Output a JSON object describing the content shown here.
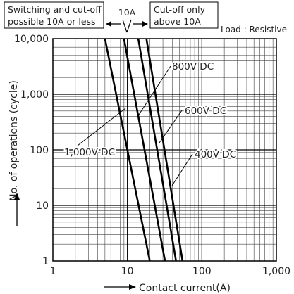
{
  "chart_data": {
    "type": "line",
    "title": "",
    "xlabel": "Contact current(A)",
    "ylabel": "No. of operations (cycle)",
    "x_scale": "log",
    "y_scale": "log",
    "xlim": [
      1,
      1000
    ],
    "ylim": [
      1,
      10000
    ],
    "x_ticks": [
      "1",
      "10",
      "100",
      "1,000"
    ],
    "y_ticks": [
      "1",
      "10",
      "100",
      "1,000",
      "10,000"
    ],
    "grid": true,
    "series": [
      {
        "name": "1,000V DC",
        "x": [
          5.0,
          20.0
        ],
        "y": [
          10000,
          1
        ]
      },
      {
        "name": "800V DC",
        "x": [
          9.0,
          32.0
        ],
        "y": [
          10000,
          1
        ]
      },
      {
        "name": "600V DC",
        "x": [
          14.0,
          45.0
        ],
        "y": [
          10000,
          1
        ]
      },
      {
        "name": "400V DC",
        "x": [
          18.0,
          55.0
        ],
        "y": [
          10000,
          1
        ]
      }
    ],
    "annotations": {
      "left_box": "Switching and cut-off possible 10A or less",
      "right_box": "Cut-off only above 10A",
      "threshold_label": "10A",
      "load_label": "Load : Resistive"
    }
  }
}
